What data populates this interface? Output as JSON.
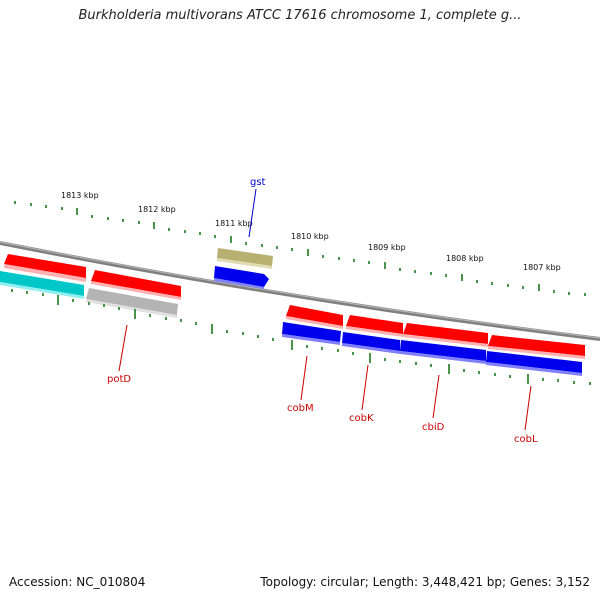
{
  "header": {
    "title": "Burkholderia multivorans ATCC 17616 chromosome 1, complete g..."
  },
  "footer": {
    "accession": "Accession: NC_010804",
    "topology": "Topology: circular; Length: 3,448,421 bp; Genes: 3,152"
  },
  "colors": {
    "backbone": "#808080",
    "tick": "#1b7a1b",
    "forward_gene": "#ff0000",
    "reverse_cds": "#0000ee",
    "reverse_gene_alt": "#00c8c8",
    "pseudo": "#b4b4b4",
    "rna": "#b8b070",
    "label_forward": "#0000cc",
    "label_reverse": "#cc0000"
  },
  "scale": {
    "unit": "kbp",
    "labels": [
      "1813 kbp",
      "1812 kbp",
      "1811 kbp",
      "1810 kbp",
      "1809 kbp",
      "1808 kbp",
      "1807 kbp"
    ]
  },
  "genes": {
    "forward_labels": [
      "gst"
    ],
    "reverse_labels": [
      "potD",
      "cobM",
      "cobK",
      "cbiD",
      "cobL"
    ]
  }
}
